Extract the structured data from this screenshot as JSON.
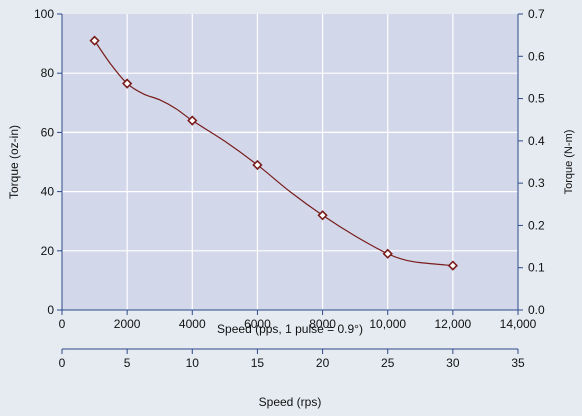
{
  "chart_data": {
    "type": "line",
    "title": "",
    "xlabel": "Speed (pps, 1 pulse = 0.9°)",
    "ylabel": "Torque (oz-in)",
    "y2label": "Torque (N-m)",
    "x2label": "Speed (rps)",
    "xlim": [
      0,
      14000
    ],
    "ylim": [
      0,
      100
    ],
    "y2lim": [
      0,
      0.7
    ],
    "x2lim": [
      0,
      35
    ],
    "xticks": [
      0,
      2000,
      4000,
      6000,
      8000,
      10000,
      12000,
      14000
    ],
    "xtick_labels": [
      "0",
      "2000",
      "4000",
      "6000",
      "8000",
      "10,000",
      "12,000",
      "14,000"
    ],
    "yticks": [
      0,
      20,
      40,
      60,
      80,
      100
    ],
    "ytick_labels": [
      "0",
      "20",
      "40",
      "60",
      "80",
      "100"
    ],
    "y2ticks": [
      0,
      0.1,
      0.2,
      0.3,
      0.4,
      0.5,
      0.6,
      0.7
    ],
    "y2tick_labels": [
      "0.0",
      "0.1",
      "0.2",
      "0.3",
      "0.4",
      "0.5",
      "0.6",
      "0.7"
    ],
    "x2ticks": [
      0,
      5,
      10,
      15,
      20,
      25,
      30,
      35
    ],
    "x2tick_labels": [
      "0",
      "5",
      "10",
      "15",
      "20",
      "25",
      "30",
      "35"
    ],
    "grid": true,
    "colors": {
      "line": "#7a1c1c",
      "plot_bg": "#d2d8ea",
      "axis": "#2d4a8a",
      "grid": "#ffffff",
      "page_bg": "#e6ebf2"
    },
    "series": [
      {
        "x": [
          1000,
          2000,
          4000,
          6000,
          8000,
          10000,
          12000
        ],
        "y": [
          91,
          76.5,
          64,
          49,
          32,
          19,
          15
        ]
      }
    ],
    "curve": {
      "x": [
        1000,
        1500,
        2000,
        2500,
        3000,
        3500,
        4000,
        5000,
        6000,
        7000,
        8000,
        9000,
        10000,
        10500,
        11000,
        12000
      ],
      "y": [
        91,
        83,
        76.5,
        73,
        71,
        68,
        64,
        57,
        49,
        40,
        32,
        25,
        19,
        17,
        16,
        15
      ]
    }
  }
}
